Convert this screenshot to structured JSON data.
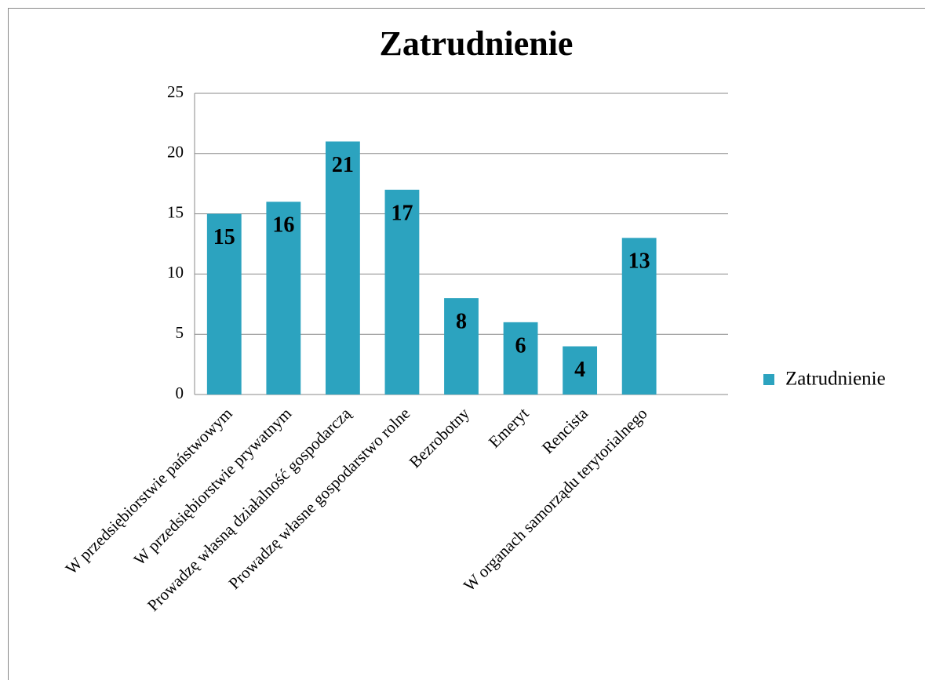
{
  "chart_data": {
    "type": "bar",
    "title": "Zatrudnienie",
    "categories": [
      "W przedsiębiorstwie państwowym",
      "W przedsiębiorstwie prywatnym",
      "Prowadzę własną działalność gospodarczą",
      "Prowadzę własne gospodarstwo rolne",
      "Bezrobotny",
      "Emeryt",
      "Rencista",
      "W organach samorządu terytorialnego",
      null
    ],
    "series": [
      {
        "name": "Zatrudnienie",
        "color": "#2ca3bf",
        "values": [
          15,
          16,
          21,
          17,
          8,
          6,
          4,
          13,
          null
        ]
      }
    ],
    "ylim": [
      0,
      25
    ],
    "yticks": [
      0,
      5,
      10,
      15,
      20,
      25
    ],
    "grid": true,
    "legend": "right"
  }
}
